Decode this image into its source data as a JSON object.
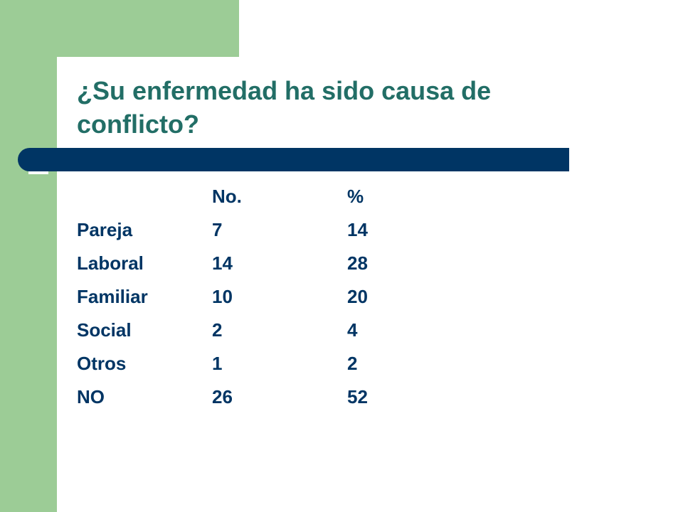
{
  "slide": {
    "title": "¿Su enfermedad ha sido causa de conflicto?",
    "colors": {
      "green": "#9ccc96",
      "title": "#226e66",
      "navy": "#003564",
      "background": "#ffffff"
    }
  },
  "table": {
    "headers": [
      "",
      "No.",
      "%"
    ],
    "rows": [
      [
        "Pareja",
        "7",
        "14"
      ],
      [
        "Laboral",
        "14",
        "28"
      ],
      [
        "Familiar",
        "10",
        "20"
      ],
      [
        "Social",
        "2",
        "4"
      ],
      [
        "Otros",
        "1",
        "2"
      ],
      [
        "NO",
        "26",
        "52"
      ]
    ]
  }
}
